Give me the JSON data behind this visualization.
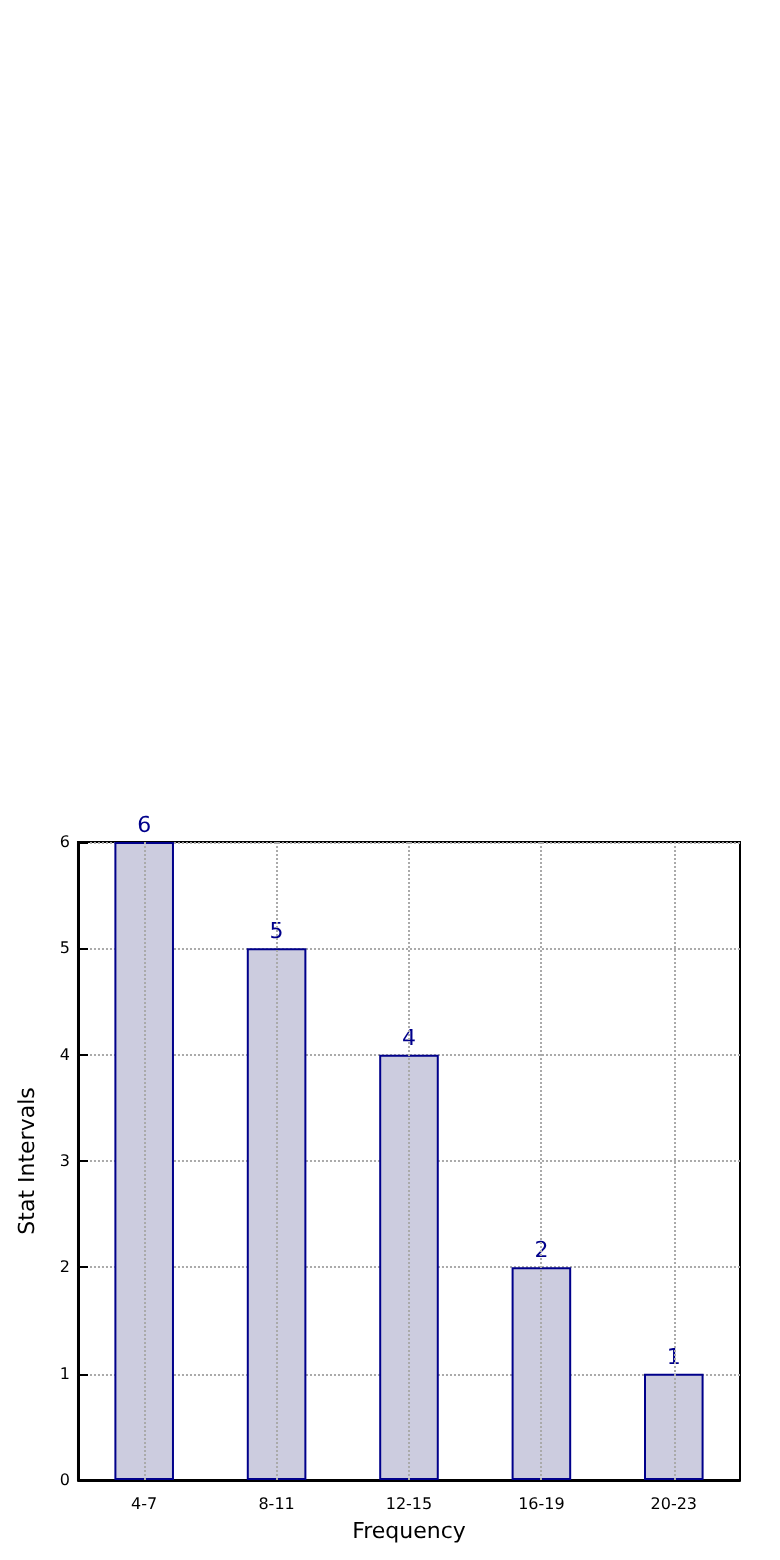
{
  "chart_data": {
    "type": "bar",
    "xlabel": "Frequency",
    "ylabel": "Stat Intervals",
    "categories": [
      "4-7",
      "8-11",
      "12-15",
      "16-19",
      "20-23"
    ],
    "values": [
      6,
      5,
      4,
      2,
      1
    ],
    "color": "#ccccdf",
    "ylim": [
      0,
      6
    ],
    "yticks": [
      0,
      1,
      2,
      3,
      4,
      5,
      6
    ],
    "grid": true,
    "data_labels": true
  }
}
